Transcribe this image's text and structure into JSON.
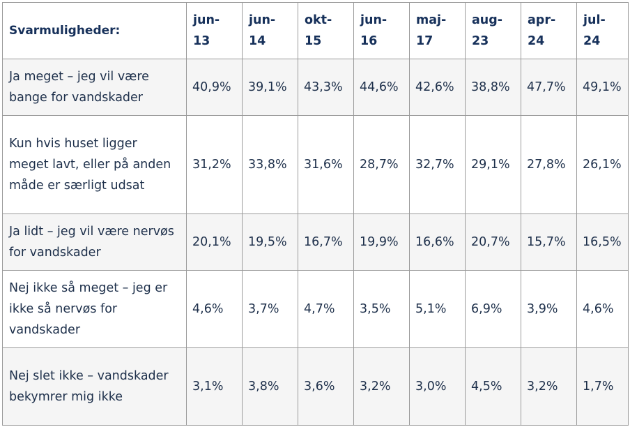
{
  "table": {
    "header": {
      "question_label": "Svarmuligheder:",
      "periods": [
        {
          "l1": "jun-",
          "l2": "13"
        },
        {
          "l1": "jun-",
          "l2": "14"
        },
        {
          "l1": "okt-",
          "l2": "15"
        },
        {
          "l1": "jun-",
          "l2": "16"
        },
        {
          "l1": "maj-",
          "l2": "17"
        },
        {
          "l1": "aug-",
          "l2": "23"
        },
        {
          "l1": "apr-",
          "l2": "24"
        },
        {
          "l1": "jul-",
          "l2": "24"
        }
      ]
    },
    "rows": [
      {
        "answer": "Ja meget – jeg vil være bange for vandskader",
        "values": [
          "40,9%",
          "39,1%",
          "43,3%",
          "44,6%",
          "42,6%",
          "38,8%",
          "47,7%",
          "49,1%"
        ]
      },
      {
        "answer": "Kun hvis huset ligger meget lavt, eller på anden måde er særligt udsat",
        "values": [
          "31,2%",
          "33,8%",
          "31,6%",
          "28,7%",
          "32,7%",
          "29,1%",
          "27,8%",
          "26,1%"
        ]
      },
      {
        "answer": "Ja lidt – jeg vil være nervøs for vandskader",
        "values": [
          "20,1%",
          "19,5%",
          "16,7%",
          "19,9%",
          "16,6%",
          "20,7%",
          "15,7%",
          "16,5%"
        ]
      },
      {
        "answer": "Nej ikke så meget – jeg er ikke så nervøs for vandskader",
        "values": [
          "4,6%",
          "3,7%",
          "4,7%",
          "3,5%",
          "5,1%",
          "6,9%",
          "3,9%",
          "4,6%"
        ]
      },
      {
        "answer": "Nej slet ikke – vandskader bekymrer mig ikke",
        "values": [
          "3,1%",
          "3,8%",
          "3,6%",
          "3,2%",
          "3,0%",
          "4,5%",
          "3,2%",
          "1,7%"
        ]
      }
    ]
  }
}
